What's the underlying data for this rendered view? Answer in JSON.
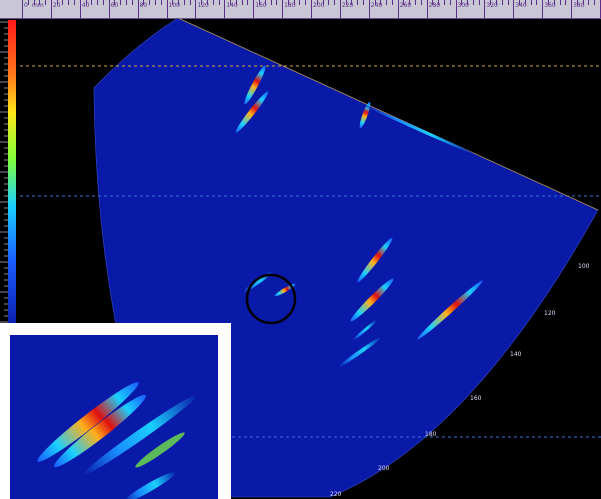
{
  "ruler": {
    "unit_label": "mm",
    "tick_labels": [
      "0",
      "20",
      "40",
      "60",
      "80",
      "100",
      "120",
      "140",
      "160",
      "180",
      "200",
      "220",
      "240",
      "260",
      "280",
      "300",
      "320",
      "340",
      "360",
      "380",
      "400"
    ]
  },
  "scan": {
    "background": "#000000",
    "sector_fill": "#0a1aa8",
    "ring_labels": [
      "100",
      "120",
      "140",
      "160",
      "180",
      "200",
      "220"
    ]
  },
  "colors": {
    "ruler_purple": "#5b2f86",
    "guide_orange": "#d4a53a",
    "guide_blue": "#3a6fd6",
    "marker_circle": "#000000",
    "inset_border": "#ffffff"
  },
  "icons": {
    "selection_marker": "circle-marker-icon"
  }
}
